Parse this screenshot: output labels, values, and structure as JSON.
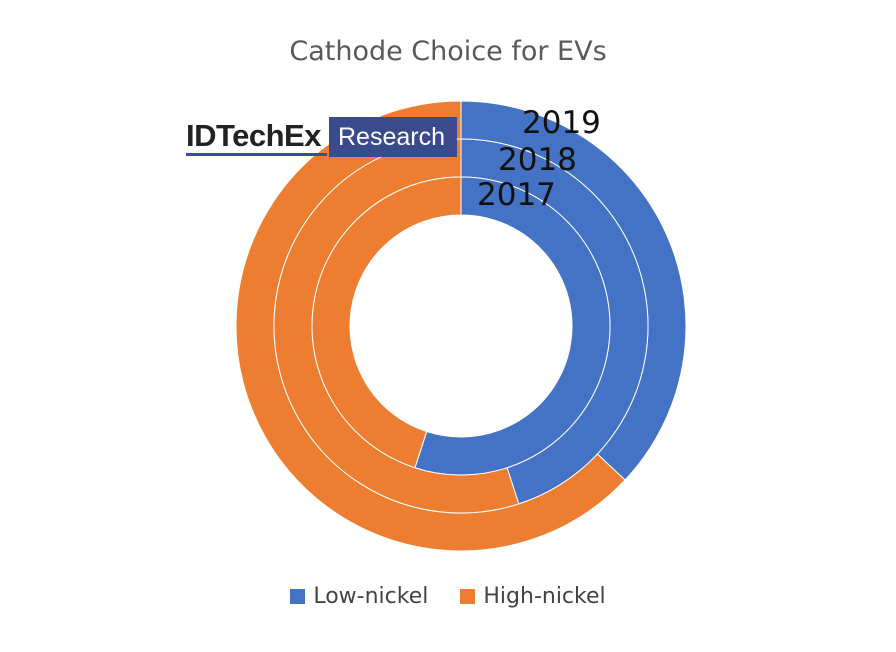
{
  "chart_data": {
    "type": "pie",
    "subtype": "multi-ring donut",
    "title": "Cathode Choice for EVs",
    "series": [
      {
        "name": "2019",
        "ring": "outer",
        "values": [
          37,
          63
        ]
      },
      {
        "name": "2018",
        "ring": "middle",
        "values": [
          45,
          55
        ]
      },
      {
        "name": "2017",
        "ring": "inner",
        "values": [
          55,
          45
        ]
      }
    ],
    "categories": [
      "Low-nickel",
      "High-nickel"
    ],
    "colors": {
      "Low-nickel": "#4472c4",
      "High-nickel": "#ed7d31"
    },
    "legend_position": "bottom"
  },
  "logo": {
    "word": "IDTechEx",
    "badge": "Research"
  }
}
